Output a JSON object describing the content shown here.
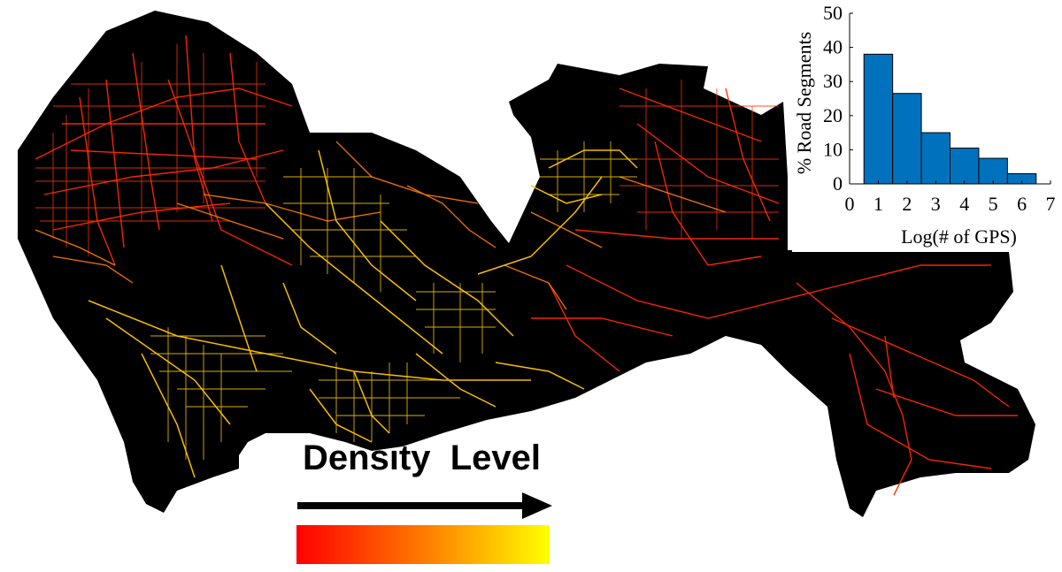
{
  "legend": {
    "title": "Density  Level",
    "gradient_start": "#ff0000",
    "gradient_mid": "#ff7a00",
    "gradient_end": "#ffff00"
  },
  "map": {
    "background": "#000000",
    "colors": {
      "low": "#ff1a00",
      "mid": "#ff7a00",
      "high": "#ffcc00"
    }
  },
  "chart_data": {
    "type": "bar",
    "xlabel": "Log(# of GPS)",
    "ylabel": "% Road Segments",
    "xlim": [
      0,
      7
    ],
    "ylim": [
      0,
      50
    ],
    "xticks": [
      0,
      1,
      2,
      3,
      4,
      5,
      6,
      7
    ],
    "yticks": [
      0,
      10,
      20,
      30,
      40,
      50
    ],
    "bin_edges": [
      0.5,
      1.5,
      2.5,
      3.5,
      4.5,
      5.5,
      6.5
    ],
    "values": [
      38,
      26.5,
      15,
      10.5,
      7.5,
      3
    ],
    "bar_color": "#0072bd"
  }
}
